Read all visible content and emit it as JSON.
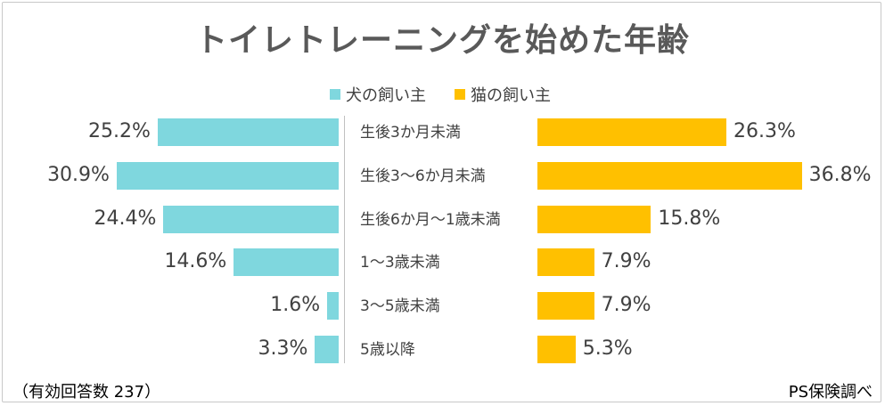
{
  "chart_data": {
    "type": "bar",
    "orientation": "horizontal-diverging",
    "title": "トイレトレーニングを始めた年齢",
    "categories": [
      "生後3か月未満",
      "生後3～6か月未満",
      "生後6か月～1歳未満",
      "1～3歳未満",
      "3～5歳未満",
      "5歳以降"
    ],
    "series": [
      {
        "name": "犬の飼い主",
        "color": "#7fd7de",
        "values": [
          25.2,
          30.9,
          24.4,
          14.6,
          1.6,
          3.3
        ],
        "labels": [
          "25.2%",
          "30.9%",
          "24.4%",
          "14.6%",
          "1.6%",
          "3.3%"
        ]
      },
      {
        "name": "猫の飼い主",
        "color": "#ffc000",
        "values": [
          26.3,
          36.8,
          15.8,
          7.9,
          7.9,
          5.3
        ],
        "labels": [
          "26.3%",
          "36.8%",
          "15.8%",
          "7.9%",
          "7.9%",
          "5.3%"
        ]
      }
    ],
    "unit": "%",
    "legend_position": "top-center"
  },
  "note": "（有効回答数 237）",
  "source": "PS保険調べ"
}
